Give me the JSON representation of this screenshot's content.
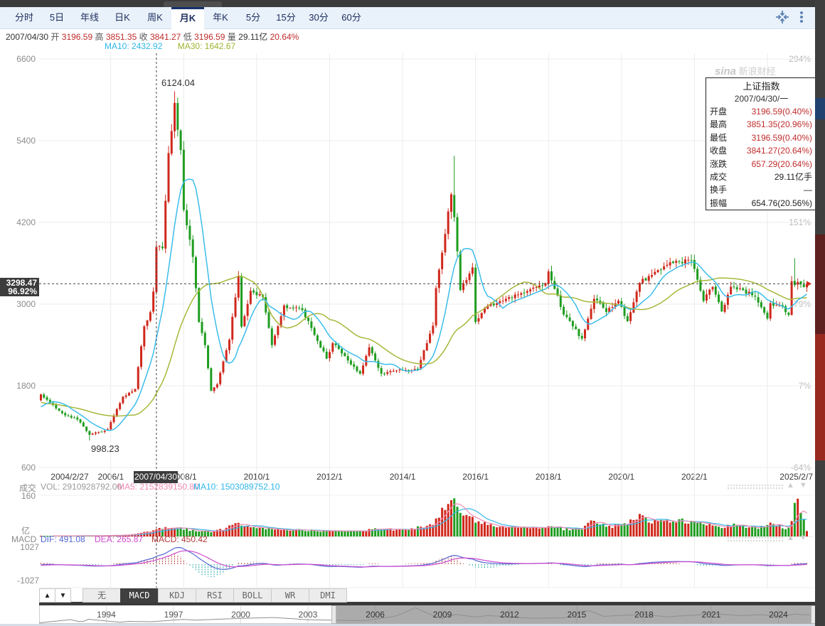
{
  "palette": {
    "up": "#d0281c",
    "down": "#1f9d20",
    "ma10": "#3bbdea",
    "ma30": "#a8b73a",
    "vol_ma5": "#f08cb4",
    "vol_ma10": "#35b8e8",
    "dif": "#5468d4",
    "dea": "#cf4ccf",
    "hist_pos": "#b23a2e",
    "hist_neg": "#21a3a3",
    "grid": "#ececec",
    "cross": "#444444",
    "nav_line": "#8f8f8f",
    "marker_red": "#d0281c"
  },
  "toolbar": {
    "tabs": [
      {
        "label": "分时"
      },
      {
        "label": "5日"
      },
      {
        "label": "年线"
      },
      {
        "label": "日K"
      },
      {
        "label": "周K"
      },
      {
        "label": "月K",
        "active": true
      },
      {
        "label": "年K"
      },
      {
        "label": "5分"
      },
      {
        "label": "15分"
      },
      {
        "label": "30分"
      },
      {
        "label": "60分"
      }
    ]
  },
  "icons": {
    "collapse": "collapse-arrows",
    "menu": "vertical-dots"
  },
  "info_bar": {
    "date": "2007/04/30",
    "open_label": "开",
    "open": "3196.59",
    "high_label": "高",
    "high": "3851.35",
    "close_label": "收",
    "close": "3841.27",
    "low_label": "低",
    "low": "3196.59",
    "vol_label": "量",
    "vol": "29.11亿",
    "change": "20.64%"
  },
  "ma_bar": {
    "ma10": "MA10: 2432.92",
    "ma30": "MA30: 1642.67"
  },
  "main_chart": {
    "y_left": [
      "6600",
      "5400",
      "4200",
      "3000",
      "1800",
      "600"
    ],
    "y_right": [
      {
        "label": "294%",
        "tick": 0
      },
      {
        "label": "151%",
        "tick": 2
      },
      {
        "label": "79%",
        "tick": 3
      },
      {
        "label": "7%",
        "tick": 4
      },
      {
        "label": "-64%",
        "tick": 5
      }
    ],
    "x_labels": [
      "2004/2/27",
      "2006/1",
      "2008/1",
      "2010/1",
      "2012/1",
      "2014/1",
      "2016/1",
      "2018/1",
      "2020/1",
      "2022/1",
      "2025/2/7"
    ],
    "peak_label": "6124.04",
    "trough_label": "998.23",
    "crosshair_price": "3298.47",
    "crosshair_pct": "96.92%",
    "crosshair_date": "2007/04/30"
  },
  "watermark": {
    "sina": "sina",
    "text": "新浪财经"
  },
  "tooltip": {
    "title": "上证指数",
    "date": "2007/04/30/一",
    "rows": [
      {
        "label": "开盘",
        "value": "3196.59(0.40%)",
        "red": true
      },
      {
        "label": "最高",
        "value": "3851.35(20.96%)",
        "red": true
      },
      {
        "label": "最低",
        "value": "3196.59(0.40%)",
        "red": true
      },
      {
        "label": "收盘",
        "value": "3841.27(20.64%)",
        "red": true
      },
      {
        "label": "涨跌",
        "value": "657.29(20.64%)",
        "red": true
      },
      {
        "label": "成交",
        "value": "29.11亿手"
      },
      {
        "label": "换手",
        "value": "—"
      },
      {
        "label": "振幅",
        "value": "654.76(20.56%)"
      }
    ]
  },
  "volume_pane": {
    "name": "成交",
    "vol": "VOL: 2910928792.00",
    "ma5": "MA5: 2152839150.80",
    "ma10": "MA10: 1503089752.10",
    "y_top": "160",
    "unit": "亿"
  },
  "macd_pane": {
    "name": "MACD",
    "dif": "DIF: 491.08",
    "dea": "DEA: 265.87",
    "macd": "MACD: 450.42",
    "y_top": "1027",
    "y_bottom": "-1027"
  },
  "indicator_bar": {
    "up": "▲",
    "down": "▼",
    "updown_pair": "▲▼",
    "items": [
      {
        "label": "无"
      },
      {
        "label": "MACD",
        "active": true
      },
      {
        "label": "KDJ"
      },
      {
        "label": "RSI"
      },
      {
        "label": "BOLL"
      },
      {
        "label": "WR"
      },
      {
        "label": "DMI"
      }
    ]
  },
  "navigator": {
    "years": [
      1994,
      1997,
      2000,
      2003,
      2006,
      2009,
      2012,
      2015,
      2018,
      2021,
      2024
    ]
  },
  "chart_data": {
    "type": "candlestick",
    "symbol": "上证指数",
    "period": "月K",
    "start_month": "2004-02",
    "end_month": "2025-02",
    "months": 253,
    "price_axis": [
      6600,
      5400,
      4200,
      3000,
      1800,
      600
    ],
    "pct_axis": [
      "294%",
      "151%",
      "79%",
      "7%",
      "-64%"
    ],
    "x_tick_month_index": [
      9.5,
      23,
      47,
      71,
      95,
      119,
      143,
      167,
      191,
      215,
      252
    ],
    "close_anchors": [
      [
        0,
        1675
      ],
      [
        2,
        1595
      ],
      [
        7,
        1397
      ],
      [
        12,
        1306
      ],
      [
        16,
        1081
      ],
      [
        22,
        1161
      ],
      [
        27,
        1641
      ],
      [
        31,
        1752
      ],
      [
        34,
        2675
      ],
      [
        36,
        2882
      ],
      [
        37,
        3184
      ],
      [
        38,
        3841.27
      ],
      [
        40,
        3821
      ],
      [
        42,
        5218
      ],
      [
        44,
        5955
      ],
      [
        46,
        5262
      ],
      [
        47,
        4383
      ],
      [
        50,
        3693
      ],
      [
        52,
        2736
      ],
      [
        54,
        2397
      ],
      [
        56,
        1729
      ],
      [
        58,
        1821
      ],
      [
        62,
        2478
      ],
      [
        65,
        3412
      ],
      [
        66,
        2668
      ],
      [
        69,
        3195
      ],
      [
        73,
        3109
      ],
      [
        76,
        2398
      ],
      [
        80,
        2979
      ],
      [
        86,
        2911
      ],
      [
        94,
        2199
      ],
      [
        96,
        2428
      ],
      [
        105,
        1980
      ],
      [
        108,
        2366
      ],
      [
        112,
        1979
      ],
      [
        119,
        2033
      ],
      [
        124,
        2048
      ],
      [
        129,
        2683
      ],
      [
        130,
        3235
      ],
      [
        135,
        4612
      ],
      [
        136,
        4277
      ],
      [
        138,
        3206
      ],
      [
        142,
        3539
      ],
      [
        143,
        2738
      ],
      [
        146,
        2938
      ],
      [
        154,
        3104
      ],
      [
        160,
        3192
      ],
      [
        166,
        3307
      ],
      [
        167,
        3481
      ],
      [
        172,
        2847
      ],
      [
        178,
        2494
      ],
      [
        182,
        3078
      ],
      [
        186,
        2886
      ],
      [
        190,
        3050
      ],
      [
        193,
        2750
      ],
      [
        197,
        3310
      ],
      [
        202,
        3473
      ],
      [
        204,
        3509
      ],
      [
        207,
        3615
      ],
      [
        214,
        3640
      ],
      [
        218,
        3047
      ],
      [
        221,
        3253
      ],
      [
        224,
        2893
      ],
      [
        227,
        3256
      ],
      [
        231,
        3205
      ],
      [
        235,
        3110
      ],
      [
        239,
        2789
      ],
      [
        240,
        3015
      ],
      [
        244,
        2967
      ],
      [
        246,
        2842
      ],
      [
        247,
        3336
      ],
      [
        248,
        3280
      ],
      [
        249,
        3326
      ],
      [
        250,
        3290
      ],
      [
        251,
        3251
      ],
      [
        252,
        3299
      ]
    ],
    "pre_close_anchors": [
      [
        -30,
        1955
      ],
      [
        -26,
        1646
      ],
      [
        -20,
        1596
      ],
      [
        -14,
        1512
      ],
      [
        -8,
        1348
      ],
      [
        -4,
        1517
      ],
      [
        -1,
        1590
      ]
    ],
    "pinned_extremes": {
      "16": {
        "low": 998.23
      },
      "44": {
        "high": 6124.04
      },
      "136": {
        "high": 5178.19
      },
      "248": {
        "high": 3674.4
      }
    },
    "volume_anchors_yi": [
      [
        0,
        2.5
      ],
      [
        20,
        3
      ],
      [
        30,
        8
      ],
      [
        36,
        20
      ],
      [
        38,
        29.11
      ],
      [
        44,
        35
      ],
      [
        50,
        25
      ],
      [
        56,
        18
      ],
      [
        60,
        30
      ],
      [
        64,
        48
      ],
      [
        69,
        42
      ],
      [
        76,
        30
      ],
      [
        86,
        25
      ],
      [
        100,
        20
      ],
      [
        112,
        30
      ],
      [
        120,
        25
      ],
      [
        128,
        45
      ],
      [
        130,
        68
      ],
      [
        133,
        120
      ],
      [
        135,
        145
      ],
      [
        136,
        150
      ],
      [
        138,
        90
      ],
      [
        141,
        75
      ],
      [
        143,
        60
      ],
      [
        148,
        45
      ],
      [
        154,
        38
      ],
      [
        160,
        35
      ],
      [
        166,
        32
      ],
      [
        167,
        45
      ],
      [
        172,
        30
      ],
      [
        178,
        28
      ],
      [
        181,
        62
      ],
      [
        186,
        40
      ],
      [
        190,
        42
      ],
      [
        193,
        55
      ],
      [
        197,
        85
      ],
      [
        200,
        60
      ],
      [
        204,
        70
      ],
      [
        207,
        65
      ],
      [
        214,
        60
      ],
      [
        218,
        48
      ],
      [
        221,
        45
      ],
      [
        224,
        40
      ],
      [
        227,
        45
      ],
      [
        231,
        42
      ],
      [
        235,
        35
      ],
      [
        239,
        45
      ],
      [
        240,
        55
      ],
      [
        244,
        38
      ],
      [
        246,
        32
      ],
      [
        247,
        62
      ],
      [
        248,
        135
      ],
      [
        249,
        152
      ],
      [
        250,
        95
      ],
      [
        251,
        68
      ],
      [
        252,
        22
      ]
    ],
    "volume_pinned_index": [
      38,
      247,
      248,
      249,
      250,
      251,
      252
    ],
    "volume_axis_max_yi": 160,
    "macd_axis": [
      1027,
      -1027
    ],
    "crosshair": {
      "month_index": 38,
      "price": 3298.47
    },
    "navigator_anchors": [
      [
        1991,
        120
      ],
      [
        1992.4,
        1400
      ],
      [
        1992.9,
        400
      ],
      [
        1993.2,
        1550
      ],
      [
        1994.6,
        350
      ],
      [
        1995,
        700
      ],
      [
        1996,
        550
      ],
      [
        1997.4,
        1500
      ],
      [
        1998,
        1200
      ],
      [
        1999.5,
        1750
      ],
      [
        2001.5,
        2245
      ],
      [
        2003,
        1350
      ],
      [
        2005.5,
        1000
      ],
      [
        2006.9,
        2700
      ],
      [
        2007.8,
        6100
      ],
      [
        2008.9,
        1730
      ],
      [
        2009.6,
        3450
      ],
      [
        2010.5,
        2400
      ],
      [
        2011,
        3050
      ],
      [
        2012.9,
        1960
      ],
      [
        2014.5,
        2100
      ],
      [
        2015.5,
        5170
      ],
      [
        2016.2,
        2700
      ],
      [
        2018,
        3500
      ],
      [
        2019,
        2500
      ],
      [
        2020.6,
        3400
      ],
      [
        2021.1,
        3700
      ],
      [
        2022.3,
        3000
      ],
      [
        2023.2,
        3350
      ],
      [
        2024.1,
        2750
      ],
      [
        2024.8,
        3650
      ],
      [
        2025.1,
        3300
      ]
    ],
    "navigator_year_range": [
      1991,
      2025.6
    ],
    "navigator_selection_years": [
      2004.2,
      2025.5
    ]
  }
}
